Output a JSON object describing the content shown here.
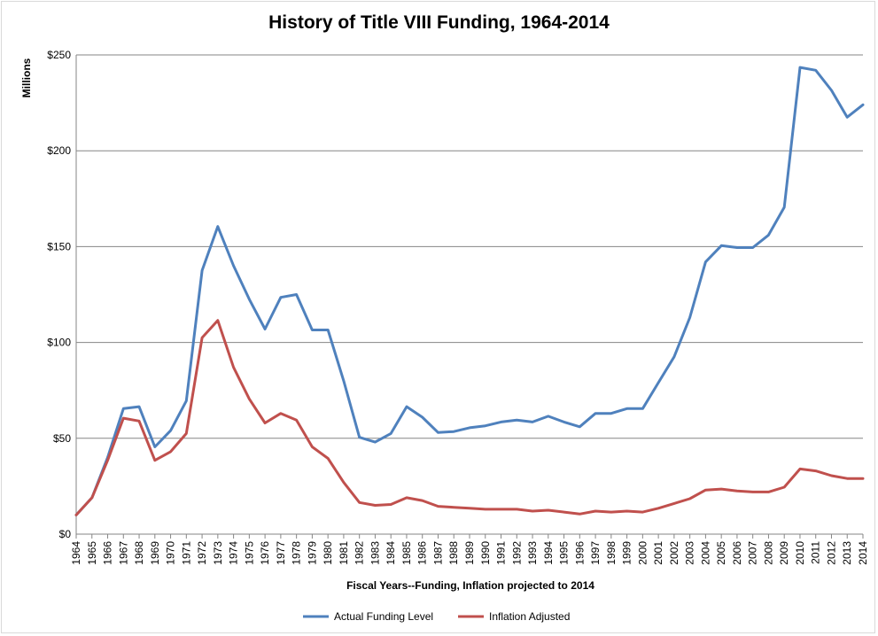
{
  "chart_data": {
    "type": "line",
    "title": "History of Title VIII Funding, 1964-2014",
    "xlabel": "Fiscal Years--Funding, Inflation projected to 2014",
    "ylabel": "Millions",
    "ylim": [
      0,
      250
    ],
    "y_ticks": [
      {
        "value": 0,
        "label": "$0"
      },
      {
        "value": 50,
        "label": "$50"
      },
      {
        "value": 100,
        "label": "$100"
      },
      {
        "value": 150,
        "label": "$150"
      },
      {
        "value": 200,
        "label": "$200"
      },
      {
        "value": 250,
        "label": "$250"
      }
    ],
    "grid": true,
    "legend_position": "bottom",
    "x": [
      "1964",
      "1965",
      "1966",
      "1967",
      "1968",
      "1969",
      "1970",
      "1971",
      "1972",
      "1973",
      "1974",
      "1975",
      "1976",
      "1977",
      "1978",
      "1979",
      "1980",
      "1981",
      "1982",
      "1983",
      "1984",
      "1985",
      "1986",
      "1987",
      "1988",
      "1989",
      "1990",
      "1991",
      "1992",
      "1993",
      "1994",
      "1995",
      "1996",
      "1997",
      "1998",
      "1999",
      "2000",
      "2001",
      "2002",
      "2003",
      "2004",
      "2005",
      "2006",
      "2007",
      "2008",
      "2009",
      "2010",
      "2011",
      "2012",
      "2013",
      "2014"
    ],
    "series": [
      {
        "name": "Actual Funding Level",
        "color": "#4f81bd",
        "values": [
          10,
          19,
          40,
          65.5,
          66.5,
          45.5,
          54,
          69.5,
          137.5,
          160.5,
          140,
          122.5,
          107,
          123.5,
          125,
          106.5,
          106.5,
          80,
          50.5,
          48,
          52.5,
          66.5,
          61,
          53,
          53.5,
          55.5,
          56.5,
          58.5,
          59.5,
          58.5,
          61.5,
          58.5,
          56,
          63,
          63,
          65.5,
          65.5,
          79,
          92.5,
          113,
          142,
          150.5,
          149.5,
          149.5,
          156,
          170.5,
          243.5,
          242,
          231.5,
          217.5,
          224
        ]
      },
      {
        "name": "Inflation Adjusted",
        "color": "#c0504d",
        "values": [
          10,
          19,
          38.5,
          60.5,
          59,
          38.5,
          43,
          52.5,
          102.5,
          111.5,
          87,
          70.5,
          58,
          63,
          59.5,
          45.5,
          39.5,
          27,
          16.5,
          15,
          15.5,
          19,
          17.5,
          14.5,
          14,
          13.5,
          13,
          13,
          13,
          12,
          12.5,
          11.5,
          10.5,
          12,
          11.5,
          12,
          11.5,
          13.5,
          16,
          18.5,
          23,
          23.5,
          22.5,
          22,
          22,
          24.5,
          34,
          33,
          30.5,
          29,
          29
        ]
      }
    ]
  }
}
